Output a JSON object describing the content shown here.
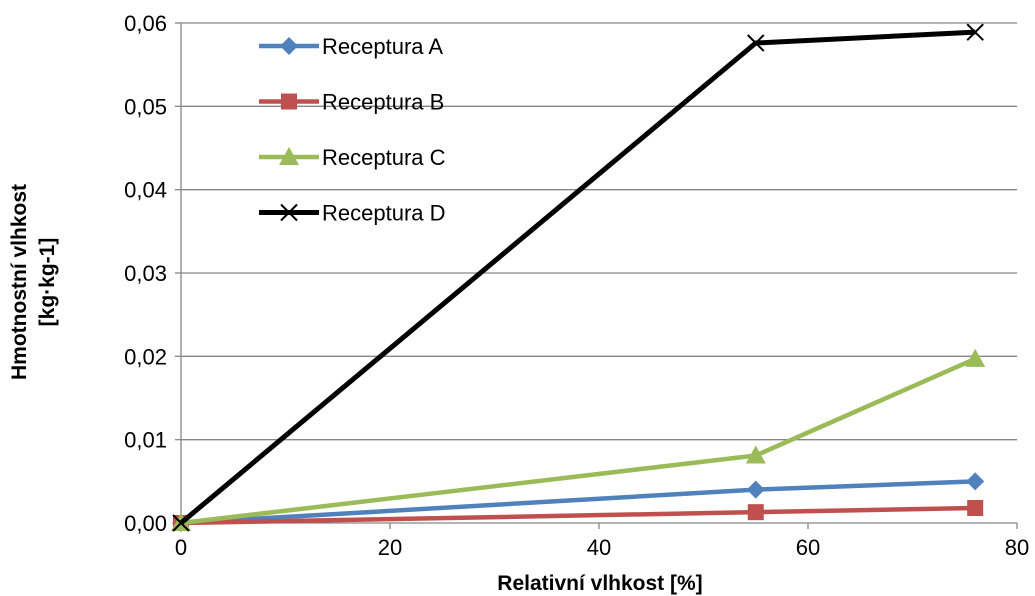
{
  "chart_data": {
    "type": "line",
    "title": "",
    "xlabel": "Relativní vlhkost [%]",
    "ylabel_lines": [
      "Hmotnostní vlhkost",
      "[kg·kg-1]"
    ],
    "xlim": [
      0,
      80
    ],
    "ylim": [
      0,
      0.06
    ],
    "xticks": [
      0,
      20,
      40,
      60,
      80
    ],
    "yticks": [
      0,
      0.01,
      0.02,
      0.03,
      0.04,
      0.05,
      0.06
    ],
    "xtick_labels": [
      "0",
      "20",
      "40",
      "60",
      "80"
    ],
    "ytick_labels": [
      "0,00",
      "0,01",
      "0,02",
      "0,03",
      "0,04",
      "0,05",
      "0,06"
    ],
    "grid": "horizontal",
    "legend_position": "top-left",
    "series": [
      {
        "name": "Receptura A",
        "color": "#4F81BD",
        "marker": "diamond",
        "x": [
          0,
          55,
          76
        ],
        "y": [
          0,
          0.004,
          0.005
        ]
      },
      {
        "name": "Receptura B",
        "color": "#C0504D",
        "marker": "square",
        "x": [
          0,
          55,
          76
        ],
        "y": [
          0,
          0.0013,
          0.0018
        ]
      },
      {
        "name": "Receptura C",
        "color": "#9BBB59",
        "marker": "triangle",
        "x": [
          0,
          55,
          76
        ],
        "y": [
          0,
          0.0081,
          0.0197
        ]
      },
      {
        "name": "Receptura D",
        "color": "#000000",
        "marker": "x",
        "x": [
          0,
          55,
          76
        ],
        "y": [
          0,
          0.0576,
          0.0589
        ]
      }
    ]
  }
}
